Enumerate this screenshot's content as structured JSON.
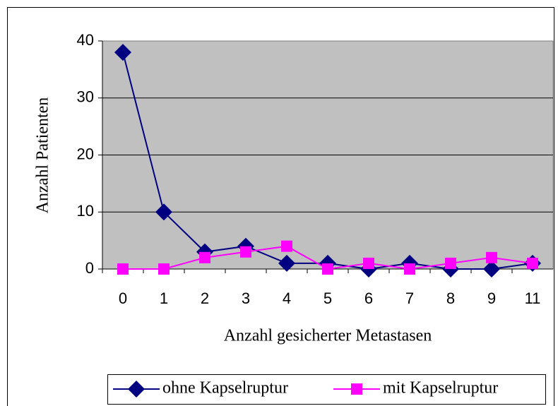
{
  "chart_data": {
    "type": "line",
    "categories": [
      "0",
      "1",
      "2",
      "3",
      "4",
      "5",
      "6",
      "7",
      "8",
      "9",
      "11"
    ],
    "series": [
      {
        "name": "ohne Kapselruptur",
        "color": "#000080",
        "marker": "diamond",
        "values": [
          38,
          10,
          3,
          4,
          1,
          1,
          0,
          1,
          0,
          0,
          1
        ]
      },
      {
        "name": "mit Kapselruptur",
        "color": "#ff00ff",
        "marker": "square",
        "values": [
          0,
          0,
          2,
          3,
          4,
          0,
          1,
          0,
          1,
          2,
          1
        ]
      }
    ],
    "ylim": [
      0,
      40
    ],
    "yticks": [
      0,
      10,
      20,
      30,
      40
    ],
    "grid": true,
    "xlabel": "Anzahl gesicherter Metastasen",
    "ylabel": "Anzahl Patienten",
    "legend": "bottom"
  }
}
